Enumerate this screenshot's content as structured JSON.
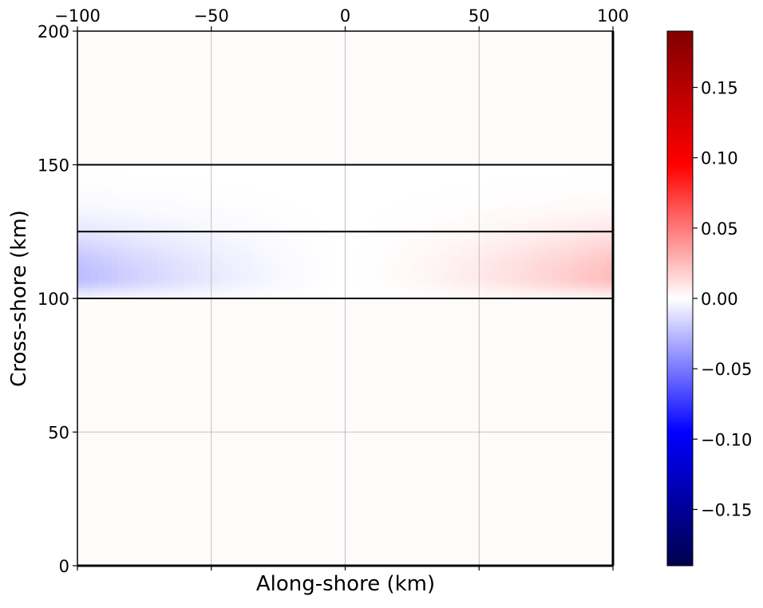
{
  "chart_data": {
    "type": "heatmap",
    "title": "",
    "xlabel": "Along-shore (km)",
    "ylabel": "Cross-shore (km)",
    "xlim": [
      -100,
      100
    ],
    "ylim": [
      0,
      200
    ],
    "x_ticks": [
      -100,
      -50,
      0,
      50,
      100
    ],
    "x_tick_labels": [
      "−100",
      "−50",
      "0",
      "50",
      "100"
    ],
    "x_ticks_position": "top",
    "y_ticks": [
      0,
      50,
      100,
      150,
      200
    ],
    "y_tick_labels": [
      "0",
      "50",
      "100",
      "150",
      "200"
    ],
    "grid": true,
    "colormap": "seismic",
    "colorbar": {
      "position": "right",
      "range": [
        -0.19,
        0.19
      ],
      "ticks": [
        -0.15,
        -0.1,
        -0.05,
        0.0,
        0.05,
        0.1,
        0.15
      ],
      "tick_labels": [
        "−0.15",
        "−0.10",
        "−0.05",
        "0.00",
        "0.05",
        "0.10",
        "0.15"
      ]
    },
    "horizontal_lines_y": [
      100,
      125,
      150
    ],
    "field": {
      "description_values": "antisymmetric anomaly between y=100 and y=150 km",
      "peak_negative": {
        "x": -100,
        "y": 108,
        "value": -0.025
      },
      "peak_positive": {
        "x": 100,
        "y": 108,
        "value": 0.025
      },
      "background_value": 0.0
    }
  }
}
